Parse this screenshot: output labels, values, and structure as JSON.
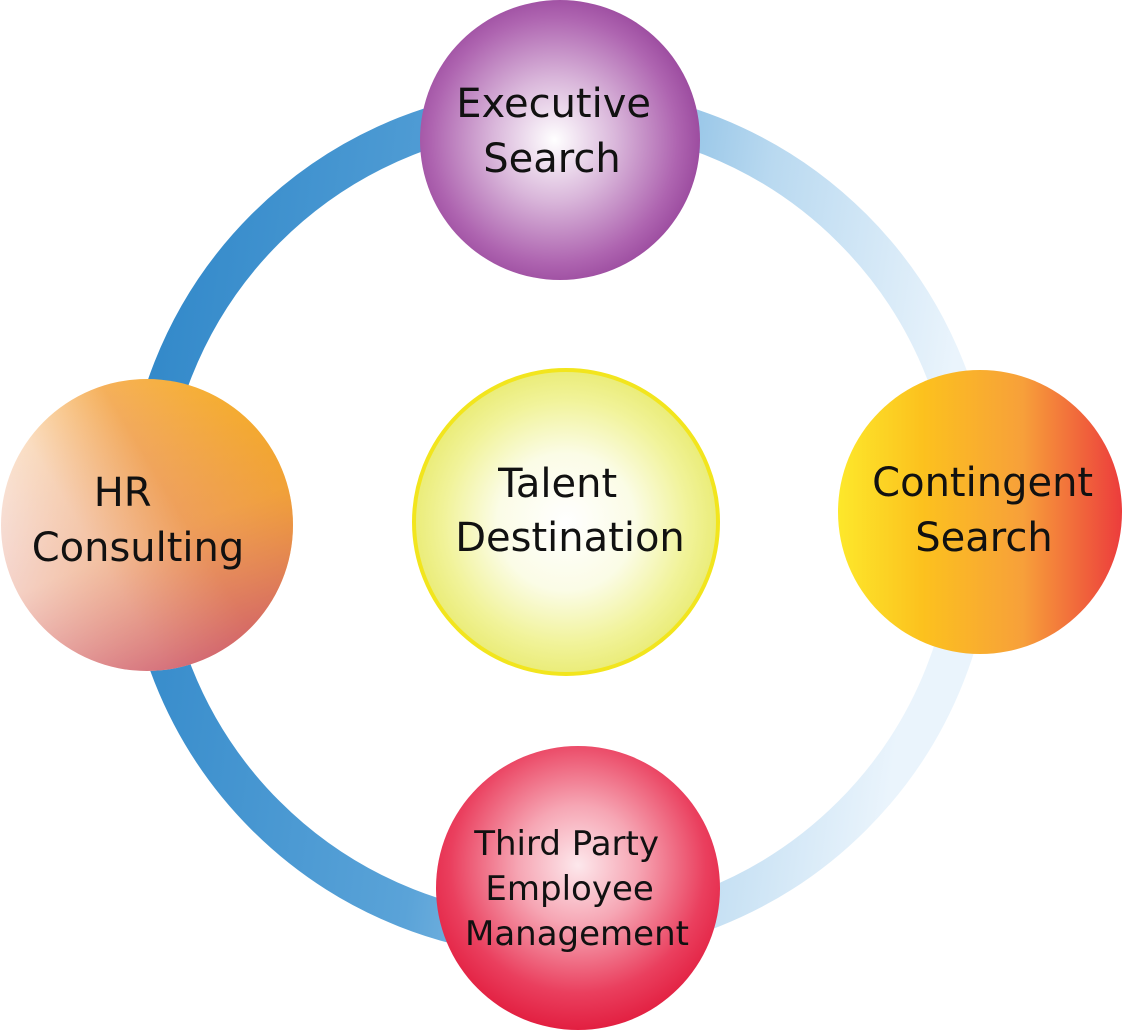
{
  "nodes": {
    "center": {
      "lines": [
        "Talent",
        "Destination"
      ]
    },
    "top": {
      "lines": [
        "Executive",
        "Search"
      ]
    },
    "right": {
      "lines": [
        "Contingent",
        "Search"
      ]
    },
    "bottom": {
      "lines": [
        "Third Party",
        "Employee",
        "Management"
      ]
    },
    "left": {
      "lines": [
        "HR",
        "Consulting"
      ]
    }
  },
  "colors": {
    "ring_dark": "#2e86c8",
    "ring_light": "#eaf4fc",
    "center_outline": "#f2e51d",
    "center_fill": "#eef08a",
    "executive": "#9b4a9f",
    "contingent_start": "#fde82b",
    "contingent_mid": "#f7a52a",
    "contingent_end": "#ee3d3d",
    "third_party": "#e5193f",
    "hr_warm": "#f6a03a",
    "hr_rose": "#d06a73"
  }
}
